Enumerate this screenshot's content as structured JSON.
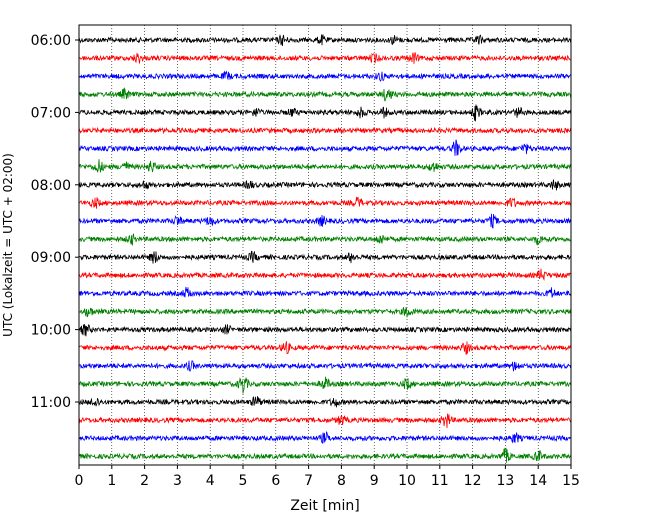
{
  "chart_data": {
    "type": "line",
    "title": "",
    "xlabel": "Zeit  [min]",
    "ylabel": "UTC (Lokalzeit = UTC + 02:00)",
    "xlim": [
      0,
      15
    ],
    "x_ticks": [
      "0",
      "1",
      "2",
      "3",
      "4",
      "5",
      "6",
      "7",
      "8",
      "9",
      "10",
      "11",
      "12",
      "13",
      "14",
      "15"
    ],
    "y_ticks": [
      "06:00",
      "07:00",
      "08:00",
      "09:00",
      "10:00",
      "11:00"
    ],
    "grid": "vertical dotted lines at each minute",
    "trace_interval_min": 15,
    "trace_colors": [
      "#000000",
      "#ff0000",
      "#0000ff",
      "#008000"
    ],
    "series": [
      {
        "start": "06:00",
        "color": "#000000",
        "events": [
          [
            6.2,
            1.6
          ],
          [
            7.4,
            1.4
          ],
          [
            9.6,
            1.3
          ],
          [
            12.2,
            1.2
          ]
        ]
      },
      {
        "start": "06:15",
        "color": "#ff0000",
        "events": [
          [
            1.8,
            1.6
          ],
          [
            9.0,
            1.3
          ],
          [
            10.2,
            1.6
          ]
        ]
      },
      {
        "start": "06:30",
        "color": "#0000ff",
        "events": [
          [
            4.5,
            1.2
          ],
          [
            9.2,
            1.3
          ]
        ]
      },
      {
        "start": "06:45",
        "color": "#008000",
        "events": [
          [
            1.4,
            1.6
          ],
          [
            9.4,
            2.6
          ]
        ]
      },
      {
        "start": "07:00",
        "color": "#000000",
        "events": [
          [
            5.4,
            1.3
          ],
          [
            6.5,
            1.2
          ],
          [
            8.6,
            1.6
          ],
          [
            9.3,
            1.4
          ],
          [
            12.1,
            2.6
          ],
          [
            13.4,
            1.5
          ]
        ]
      },
      {
        "start": "07:15",
        "color": "#ff0000",
        "events": []
      },
      {
        "start": "07:30",
        "color": "#0000ff",
        "events": [
          [
            11.5,
            2.8
          ],
          [
            13.6,
            1.5
          ]
        ]
      },
      {
        "start": "07:45",
        "color": "#008000",
        "events": [
          [
            0.6,
            2.4
          ],
          [
            1.4,
            1.6
          ],
          [
            2.2,
            1.8
          ],
          [
            10.8,
            1.8
          ]
        ]
      },
      {
        "start": "08:00",
        "color": "#000000",
        "events": [
          [
            2.0,
            1.2
          ],
          [
            5.2,
            1.2
          ],
          [
            14.5,
            1.6
          ]
        ]
      },
      {
        "start": "08:15",
        "color": "#ff0000",
        "events": [
          [
            0.5,
            1.6
          ],
          [
            8.5,
            1.6
          ],
          [
            13.2,
            1.5
          ]
        ]
      },
      {
        "start": "08:30",
        "color": "#0000ff",
        "events": [
          [
            3.0,
            1.6
          ],
          [
            4.0,
            1.5
          ],
          [
            7.4,
            1.6
          ],
          [
            12.6,
            2.0
          ]
        ]
      },
      {
        "start": "08:45",
        "color": "#008000",
        "events": [
          [
            1.6,
            1.6
          ],
          [
            9.2,
            1.6
          ],
          [
            14.0,
            1.5
          ]
        ]
      },
      {
        "start": "09:00",
        "color": "#000000",
        "events": [
          [
            2.3,
            2.0
          ],
          [
            5.3,
            1.6
          ],
          [
            8.3,
            1.5
          ]
        ]
      },
      {
        "start": "09:15",
        "color": "#ff0000",
        "events": [
          [
            14.1,
            1.8
          ]
        ]
      },
      {
        "start": "09:30",
        "color": "#0000ff",
        "events": [
          [
            3.3,
            1.8
          ],
          [
            14.4,
            1.6
          ]
        ]
      },
      {
        "start": "09:45",
        "color": "#008000",
        "events": [
          [
            0.3,
            1.6
          ],
          [
            10.0,
            1.8
          ]
        ]
      },
      {
        "start": "10:00",
        "color": "#000000",
        "events": [
          [
            0.2,
            2.0
          ],
          [
            4.5,
            1.3
          ]
        ]
      },
      {
        "start": "10:15",
        "color": "#ff0000",
        "events": [
          [
            6.3,
            2.0
          ],
          [
            11.8,
            1.8
          ]
        ]
      },
      {
        "start": "10:30",
        "color": "#0000ff",
        "events": [
          [
            3.4,
            1.4
          ],
          [
            13.3,
            1.6
          ]
        ]
      },
      {
        "start": "10:45",
        "color": "#008000",
        "events": [
          [
            5.0,
            3.2
          ],
          [
            7.5,
            2.0
          ],
          [
            10.0,
            1.8
          ]
        ]
      },
      {
        "start": "11:00",
        "color": "#000000",
        "events": [
          [
            0.5,
            1.6
          ],
          [
            5.4,
            2.0
          ],
          [
            7.8,
            1.5
          ]
        ]
      },
      {
        "start": "11:15",
        "color": "#ff0000",
        "events": [
          [
            8.0,
            1.6
          ],
          [
            11.2,
            2.6
          ]
        ]
      },
      {
        "start": "11:30",
        "color": "#0000ff",
        "events": [
          [
            7.5,
            1.8
          ],
          [
            13.3,
            1.5
          ]
        ]
      },
      {
        "start": "11:45",
        "color": "#008000",
        "events": [
          [
            13.0,
            2.4
          ],
          [
            14.0,
            1.8
          ]
        ]
      }
    ]
  }
}
